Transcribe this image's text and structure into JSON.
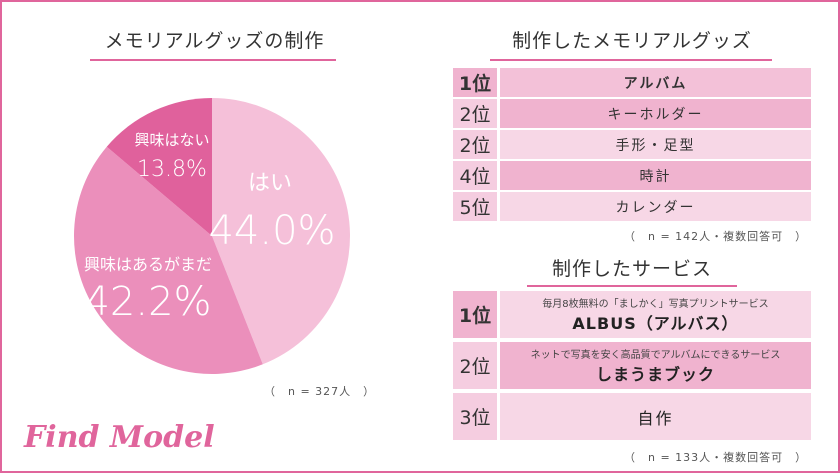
{
  "pie_section": {
    "title": "メモリアルグッズの制作",
    "note": "（　n = 327人　）"
  },
  "chart_data": {
    "type": "pie",
    "title": "メモリアルグッズの制作",
    "categories": [
      "はい",
      "興味はあるがまだ",
      "興味はない"
    ],
    "values": [
      44.0,
      42.2,
      13.8
    ],
    "value_labels": [
      "44.0%",
      "42.2%",
      "13.8%"
    ],
    "colors": [
      "#f5c0d9",
      "#eb8fbb",
      "#e0619c"
    ]
  },
  "goods_section": {
    "title": "制作したメモリアルグッズ",
    "note": "（　n = 142人・複数回答可　）",
    "rows": [
      {
        "rank": "1位",
        "item": "アルバム"
      },
      {
        "rank": "2位",
        "item": "キーホルダー"
      },
      {
        "rank": "2位",
        "item": "手形・足型"
      },
      {
        "rank": "4位",
        "item": "時計"
      },
      {
        "rank": "5位",
        "item": "カレンダー"
      }
    ]
  },
  "service_section": {
    "title": "制作したサービス",
    "note": "（　n = 133人・複数回答可　）",
    "rows": [
      {
        "rank": "1位",
        "sub": "毎月8枚無料の「ましかく」写真プリントサービス",
        "name": "ALBUS（アルバス）"
      },
      {
        "rank": "2位",
        "sub": "ネットで写真を安く高品質でアルバムにできるサービス",
        "name": "しまうまブック"
      },
      {
        "rank": "3位",
        "sub": "",
        "name": "自作"
      }
    ]
  },
  "logo": "Find Model",
  "colors": {
    "accent": "#e0659c",
    "rank_cell_top": "#f0b3cf",
    "rank_cell": "#f5cde0",
    "item_cell_top": "#f3c1d8",
    "item_cell": "#f7d7e6"
  }
}
